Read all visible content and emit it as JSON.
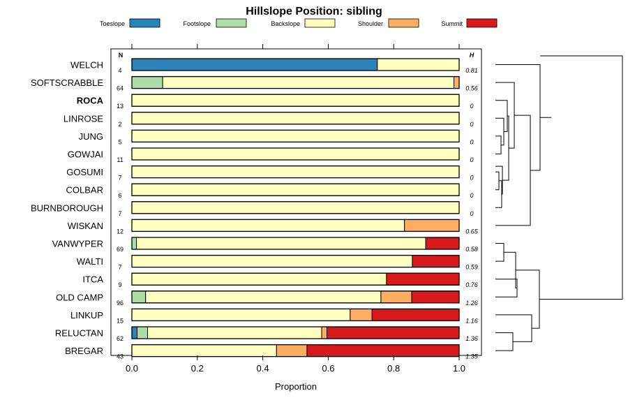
{
  "chart_data": {
    "type": "bar",
    "orientation": "horizontal",
    "stacked": true,
    "title": "Hillslope Position: sibling",
    "xlabel": "Proportion",
    "ylabel": "",
    "xlim": [
      0,
      1
    ],
    "xticks": [
      "0.0",
      "0.2",
      "0.4",
      "0.6",
      "0.8",
      "1.0"
    ],
    "n_header": "N",
    "h_header": "H",
    "highlighted_category": "ROCA",
    "legend_position": "top",
    "series": [
      {
        "name": "Toeslope",
        "color": "#2b83ba"
      },
      {
        "name": "Footslope",
        "color": "#abdda4"
      },
      {
        "name": "Backslope",
        "color": "#ffffbf"
      },
      {
        "name": "Shoulder",
        "color": "#fdae61"
      },
      {
        "name": "Summit",
        "color": "#d7191c"
      }
    ],
    "categories": [
      "WELCH",
      "SOFTSCRABBLE",
      "ROCA",
      "LINROSE",
      "JUNG",
      "GOWJAI",
      "GOSUMI",
      "COLBAR",
      "BURNBOROUGH",
      "WISKAN",
      "VANWYPER",
      "WALTI",
      "ITCA",
      "OLD CAMP",
      "LINKUP",
      "RELUCTAN",
      "BREGAR"
    ],
    "n": [
      "4",
      "64",
      "13",
      "2",
      "5",
      "11",
      "7",
      "6",
      "7",
      "12",
      "69",
      "7",
      "9",
      "96",
      "15",
      "62",
      "43"
    ],
    "h": [
      "0.81",
      "0.56",
      "0",
      "0",
      "0",
      "0",
      "0",
      "0",
      "0",
      "0.65",
      "0.58",
      "0.59",
      "0.76",
      "1.26",
      "1.16",
      "1.36",
      "1.35"
    ],
    "proportions": [
      [
        0.75,
        0,
        0.25,
        0,
        0
      ],
      [
        0,
        0.094,
        0.89,
        0.016,
        0
      ],
      [
        0,
        0,
        1,
        0,
        0
      ],
      [
        0,
        0,
        1,
        0,
        0
      ],
      [
        0,
        0,
        1,
        0,
        0
      ],
      [
        0,
        0,
        1,
        0,
        0
      ],
      [
        0,
        0,
        1,
        0,
        0
      ],
      [
        0,
        0,
        1,
        0,
        0
      ],
      [
        0,
        0,
        1,
        0,
        0
      ],
      [
        0,
        0,
        0.833,
        0.167,
        0
      ],
      [
        0,
        0.014,
        0.884,
        0,
        0.101
      ],
      [
        0,
        0,
        0.857,
        0,
        0.143
      ],
      [
        0,
        0,
        0.778,
        0,
        0.222
      ],
      [
        0,
        0.042,
        0.719,
        0.094,
        0.146
      ],
      [
        0,
        0,
        0.667,
        0.067,
        0.267
      ],
      [
        0.016,
        0.032,
        0.532,
        0.016,
        0.403
      ],
      [
        0,
        0,
        0.442,
        0.093,
        0.465
      ]
    ],
    "dendrogram": "hierarchical clustering of the 17 series shown beside the bars"
  }
}
